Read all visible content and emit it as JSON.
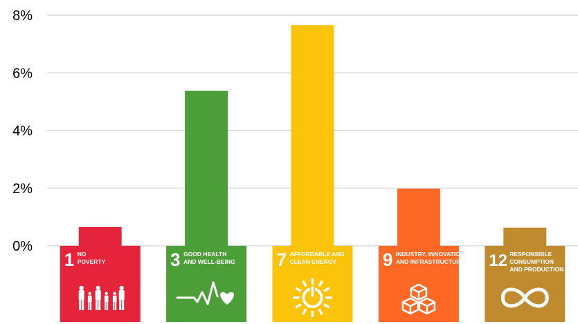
{
  "chart_data": {
    "type": "bar",
    "categories": [
      "1",
      "3",
      "7",
      "9",
      "12"
    ],
    "values": [
      0.65,
      5.38,
      7.66,
      1.98,
      0.63
    ],
    "ylim": [
      0,
      8
    ],
    "yticks": [
      "0%",
      "2%",
      "4%",
      "6%",
      "8%"
    ],
    "grid": true,
    "legend": "none",
    "bar_colors": [
      "#E5243B",
      "#4C9F38",
      "#FCC30B",
      "#FD6925",
      "#BF8B2E"
    ],
    "category_tiles": [
      {
        "number": "1",
        "lines": [
          "NO",
          "POVERTY"
        ],
        "color": "#E5243B",
        "icon": "family-icon"
      },
      {
        "number": "3",
        "lines": [
          "GOOD HEALTH",
          "AND WELL-BEING"
        ],
        "color": "#4C9F38",
        "icon": "heartbeat-icon"
      },
      {
        "number": "7",
        "lines": [
          "AFFORDABLE AND",
          "CLEAN ENERGY"
        ],
        "color": "#FCC30B",
        "icon": "sun-power-icon"
      },
      {
        "number": "9",
        "lines": [
          "INDUSTRY, INNOVATION",
          "AND INFRASTRUCTURE"
        ],
        "color": "#FD6925",
        "icon": "cubes-icon"
      },
      {
        "number": "12",
        "lines": [
          "RESPONSIBLE",
          "CONSUMPTION",
          "AND PRODUCTION"
        ],
        "color": "#BF8B2E",
        "icon": "infinity-icon"
      }
    ]
  }
}
